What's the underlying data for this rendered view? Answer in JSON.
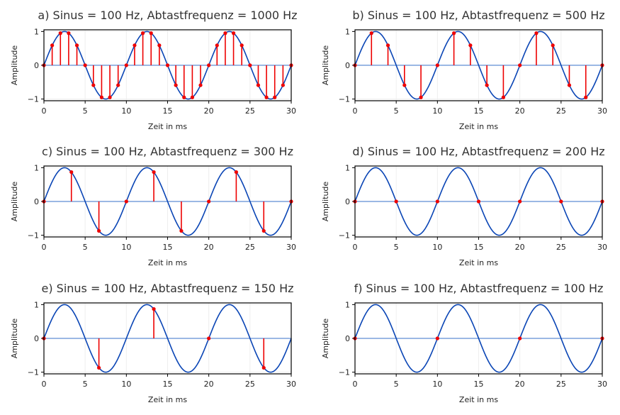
{
  "figure": {
    "colors": {
      "sine": "#0a45b5",
      "zero_line": "#7aa0dc",
      "sample": "#ee0000",
      "grid": "#eeeeee",
      "frame": "#000000"
    }
  },
  "chart_data": [
    {
      "type": "line",
      "title": "a) Sinus = 100 Hz, Abtastfrequenz = 1000 Hz",
      "xlabel": "Zeit in ms",
      "ylabel": "Amplitude",
      "signal_frequency_hz": 100,
      "sampling_frequency_hz": 1000,
      "xlim": [
        0,
        30
      ],
      "ylim": [
        -1.05,
        1.05
      ],
      "xticks": [
        0,
        5,
        10,
        15,
        20,
        25,
        30
      ],
      "yticks": [
        -1,
        0,
        1
      ],
      "grid": true,
      "series": [
        {
          "kind": "continuous",
          "function": "sin(2*pi*100*t)"
        },
        {
          "kind": "stem",
          "x": [
            0,
            1,
            2,
            3,
            4,
            5,
            6,
            7,
            8,
            9,
            10,
            11,
            12,
            13,
            14,
            15,
            16,
            17,
            18,
            19,
            20,
            21,
            22,
            23,
            24,
            25,
            26,
            27,
            28,
            29,
            30
          ],
          "y": [
            0,
            0.59,
            0.95,
            0.95,
            0.59,
            0,
            -0.59,
            -0.95,
            -0.95,
            -0.59,
            0,
            0.59,
            0.95,
            0.95,
            0.59,
            0,
            -0.59,
            -0.95,
            -0.95,
            -0.59,
            0,
            0.59,
            0.95,
            0.95,
            0.59,
            0,
            -0.59,
            -0.95,
            -0.95,
            -0.59,
            0
          ]
        }
      ]
    },
    {
      "type": "line",
      "title": "b) Sinus = 100 Hz, Abtastfrequenz = 500 Hz",
      "xlabel": "Zeit in ms",
      "ylabel": "Amplitude",
      "signal_frequency_hz": 100,
      "sampling_frequency_hz": 500,
      "xlim": [
        0,
        30
      ],
      "ylim": [
        -1.05,
        1.05
      ],
      "xticks": [
        0,
        5,
        10,
        15,
        20,
        25,
        30
      ],
      "yticks": [
        -1,
        0,
        1
      ],
      "grid": true,
      "series": [
        {
          "kind": "continuous",
          "function": "sin(2*pi*100*t)"
        },
        {
          "kind": "stem",
          "x": [
            0,
            2,
            4,
            6,
            8,
            10,
            12,
            14,
            16,
            18,
            20,
            22,
            24,
            26,
            28,
            30
          ],
          "y": [
            0,
            0.95,
            0.59,
            -0.59,
            -0.95,
            0,
            0.95,
            0.59,
            -0.59,
            -0.95,
            0,
            0.95,
            0.59,
            -0.59,
            -0.95,
            0
          ]
        }
      ]
    },
    {
      "type": "line",
      "title": "c) Sinus = 100 Hz, Abtastfrequenz = 300 Hz",
      "xlabel": "Zeit in ms",
      "ylabel": "Amplitude",
      "signal_frequency_hz": 100,
      "sampling_frequency_hz": 300,
      "xlim": [
        0,
        30
      ],
      "ylim": [
        -1.05,
        1.05
      ],
      "xticks": [
        0,
        5,
        10,
        15,
        20,
        25,
        30
      ],
      "yticks": [
        -1,
        0,
        1
      ],
      "grid": true,
      "series": [
        {
          "kind": "continuous",
          "function": "sin(2*pi*100*t)"
        },
        {
          "kind": "stem",
          "x": [
            0,
            3.33,
            6.67,
            10,
            13.33,
            16.67,
            20,
            23.33,
            26.67,
            30
          ],
          "y": [
            0,
            0.87,
            -0.87,
            0,
            0.87,
            -0.87,
            0,
            0.87,
            -0.87,
            0
          ]
        }
      ]
    },
    {
      "type": "line",
      "title": "d) Sinus = 100 Hz, Abtastfrequenz = 200 Hz",
      "xlabel": "Zeit in ms",
      "ylabel": "Amplitude",
      "signal_frequency_hz": 100,
      "sampling_frequency_hz": 200,
      "xlim": [
        0,
        30
      ],
      "ylim": [
        -1.05,
        1.05
      ],
      "xticks": [
        0,
        5,
        10,
        15,
        20,
        25,
        30
      ],
      "yticks": [
        -1,
        0,
        1
      ],
      "grid": true,
      "series": [
        {
          "kind": "continuous",
          "function": "sin(2*pi*100*t)"
        },
        {
          "kind": "stem",
          "x": [
            0,
            5,
            10,
            15,
            20,
            25,
            30
          ],
          "y": [
            0,
            0,
            0,
            0,
            0,
            0,
            0
          ]
        }
      ]
    },
    {
      "type": "line",
      "title": "e) Sinus = 100 Hz, Abtastfrequenz = 150 Hz",
      "xlabel": "Zeit in ms",
      "ylabel": "Amplitude",
      "signal_frequency_hz": 100,
      "sampling_frequency_hz": 150,
      "xlim": [
        0,
        30
      ],
      "ylim": [
        -1.05,
        1.05
      ],
      "xticks": [
        0,
        5,
        10,
        15,
        20,
        25,
        30
      ],
      "yticks": [
        -1,
        0,
        1
      ],
      "grid": true,
      "series": [
        {
          "kind": "continuous",
          "function": "sin(2*pi*100*t)"
        },
        {
          "kind": "stem",
          "x": [
            0,
            6.67,
            13.33,
            20,
            26.67
          ],
          "y": [
            0,
            -0.87,
            0.87,
            0,
            -0.87
          ]
        }
      ]
    },
    {
      "type": "line",
      "title": "f) Sinus = 100 Hz, Abtastfrequenz = 100 Hz",
      "xlabel": "Zeit in ms",
      "ylabel": "Amplitude",
      "signal_frequency_hz": 100,
      "sampling_frequency_hz": 100,
      "xlim": [
        0,
        30
      ],
      "ylim": [
        -1.05,
        1.05
      ],
      "xticks": [
        0,
        5,
        10,
        15,
        20,
        25,
        30
      ],
      "yticks": [
        -1,
        0,
        1
      ],
      "grid": true,
      "series": [
        {
          "kind": "continuous",
          "function": "sin(2*pi*100*t)"
        },
        {
          "kind": "stem",
          "x": [
            0,
            10,
            20,
            30
          ],
          "y": [
            0,
            0,
            0,
            0
          ]
        }
      ]
    }
  ]
}
